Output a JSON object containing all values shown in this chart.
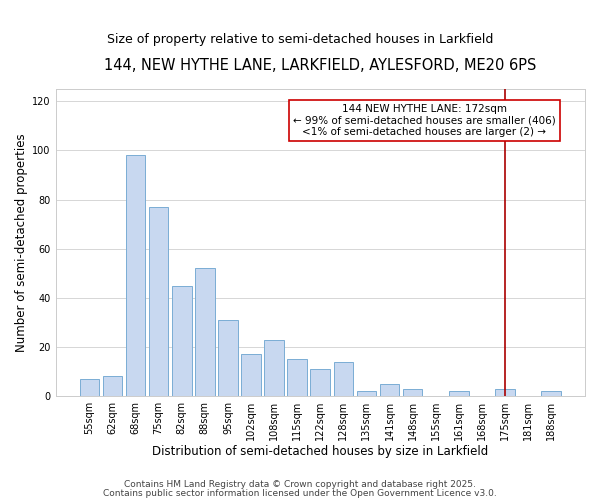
{
  "title": "144, NEW HYTHE LANE, LARKFIELD, AYLESFORD, ME20 6PS",
  "subtitle": "Size of property relative to semi-detached houses in Larkfield",
  "xlabel": "Distribution of semi-detached houses by size in Larkfield",
  "ylabel": "Number of semi-detached properties",
  "categories": [
    "55sqm",
    "62sqm",
    "68sqm",
    "75sqm",
    "82sqm",
    "88sqm",
    "95sqm",
    "102sqm",
    "108sqm",
    "115sqm",
    "122sqm",
    "128sqm",
    "135sqm",
    "141sqm",
    "148sqm",
    "155sqm",
    "161sqm",
    "168sqm",
    "175sqm",
    "181sqm",
    "188sqm"
  ],
  "values": [
    7,
    8,
    98,
    77,
    45,
    52,
    31,
    17,
    23,
    15,
    11,
    14,
    2,
    5,
    3,
    0,
    2,
    0,
    3,
    0,
    2
  ],
  "bar_color": "#c8d8f0",
  "bar_edge_color": "#7aadd4",
  "grid_color": "#d0d0d0",
  "vline_x": 18,
  "vline_color": "#aa0000",
  "annotation_title": "144 NEW HYTHE LANE: 172sqm",
  "annotation_line1": "← 99% of semi-detached houses are smaller (406)",
  "annotation_line2": "<1% of semi-detached houses are larger (2) →",
  "annotation_box_color": "#ffffff",
  "annotation_box_edge": "#cc0000",
  "ylim": [
    0,
    125
  ],
  "yticks": [
    0,
    20,
    40,
    60,
    80,
    100,
    120
  ],
  "footnote1": "Contains HM Land Registry data © Crown copyright and database right 2025.",
  "footnote2": "Contains public sector information licensed under the Open Government Licence v3.0.",
  "background_color": "#ffffff",
  "title_fontsize": 10.5,
  "subtitle_fontsize": 9,
  "xlabel_fontsize": 8.5,
  "ylabel_fontsize": 8.5,
  "tick_fontsize": 7,
  "annotation_fontsize": 7.5,
  "footnote_fontsize": 6.5
}
